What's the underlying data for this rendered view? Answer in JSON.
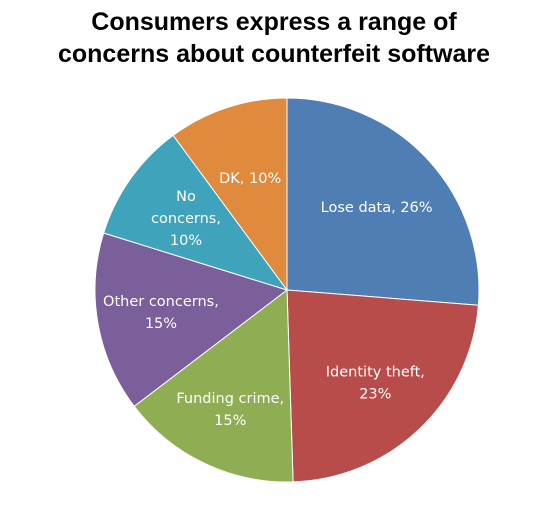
{
  "chart_title_lines": [
    "Consumers express a range of",
    "concerns about counterfeit software"
  ],
  "chart_data": {
    "type": "pie",
    "title": "Consumers express a range of concerns about counterfeit software",
    "start": "12 o'clock, clockwise",
    "slices": [
      {
        "label": "Lose data",
        "value": 26,
        "color": "#4f7eb5",
        "label_lines": [
          "Lose data, 26%"
        ]
      },
      {
        "label": "Identity theft",
        "value": 23,
        "color": "#b74c4a",
        "label_lines": [
          "Identity theft,",
          "23%"
        ]
      },
      {
        "label": "Funding crime",
        "value": 15,
        "color": "#8fae53",
        "label_lines": [
          "Funding crime,",
          "15%"
        ]
      },
      {
        "label": "Other concerns",
        "value": 15,
        "color": "#7b5f9a",
        "label_lines": [
          "Other concerns,",
          "15%"
        ]
      },
      {
        "label": "No concerns",
        "value": 10,
        "color": "#3ea3bb",
        "label_lines": [
          "No",
          "concerns,",
          "10%"
        ]
      },
      {
        "label": "DK",
        "value": 10,
        "color": "#e08a3d",
        "label_lines": [
          "DK, 10%"
        ]
      }
    ]
  }
}
